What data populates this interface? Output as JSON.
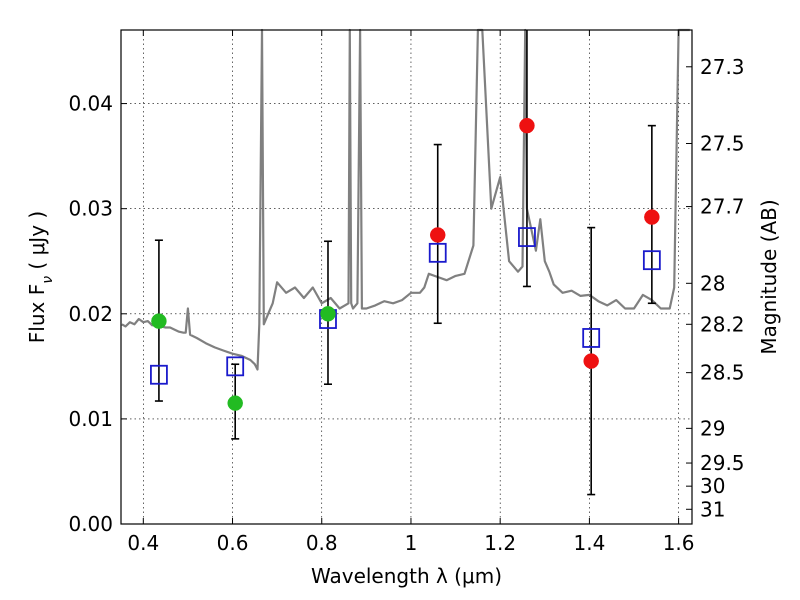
{
  "chart_data": {
    "type": "scatter",
    "xlabel": "Wavelength  λ (μm)",
    "ylabel": "Flux  F",
    "ylabel_sub": "ν",
    "ylabel_unit": " ( μJy )",
    "y2label": "Magnitude (AB)",
    "xlim": [
      0.35,
      1.63
    ],
    "ylim": [
      0.0,
      0.047
    ],
    "grid": true,
    "x_ticks": [
      {
        "value": 0.4,
        "label": "0.4"
      },
      {
        "value": 0.6,
        "label": "0.6"
      },
      {
        "value": 0.8,
        "label": "0.8"
      },
      {
        "value": 1.0,
        "label": "1"
      },
      {
        "value": 1.2,
        "label": "1.2"
      },
      {
        "value": 1.4,
        "label": "1.4"
      },
      {
        "value": 1.6,
        "label": "1.6"
      }
    ],
    "y_ticks": [
      {
        "value": 0.0,
        "label": "0.00"
      },
      {
        "value": 0.01,
        "label": "0.01"
      },
      {
        "value": 0.02,
        "label": "0.02"
      },
      {
        "value": 0.03,
        "label": "0.03"
      },
      {
        "value": 0.04,
        "label": "0.04"
      }
    ],
    "y2_ticks": [
      {
        "flux": 0.0435,
        "label": "27.3"
      },
      {
        "flux": 0.0362,
        "label": "27.5"
      },
      {
        "flux": 0.0302,
        "label": "27.7"
      },
      {
        "flux": 0.0229,
        "label": "28"
      },
      {
        "flux": 0.019,
        "label": "28.2"
      },
      {
        "flux": 0.0144,
        "label": "28.5"
      },
      {
        "flux": 0.0091,
        "label": "29"
      },
      {
        "flux": 0.0058,
        "label": "29.5"
      },
      {
        "flux": 0.0036,
        "label": "30"
      },
      {
        "flux": 0.0014,
        "label": "31"
      }
    ],
    "series": [
      {
        "kind": "spectrum",
        "color": "#808080",
        "x": [
          0.352,
          0.36,
          0.37,
          0.38,
          0.39,
          0.4,
          0.41,
          0.42,
          0.43,
          0.44,
          0.45,
          0.46,
          0.47,
          0.48,
          0.49,
          0.495,
          0.5,
          0.505,
          0.52,
          0.54,
          0.56,
          0.58,
          0.6,
          0.62,
          0.64,
          0.65,
          0.656,
          0.66,
          0.666,
          0.67,
          0.68,
          0.69,
          0.7,
          0.72,
          0.74,
          0.76,
          0.78,
          0.8,
          0.82,
          0.84,
          0.86,
          0.863,
          0.866,
          0.87,
          0.88,
          0.886,
          0.89,
          0.9,
          0.92,
          0.94,
          0.96,
          0.98,
          1.0,
          1.02,
          1.03,
          1.04,
          1.06,
          1.08,
          1.1,
          1.12,
          1.14,
          1.15,
          1.16,
          1.18,
          1.2,
          1.22,
          1.24,
          1.25,
          1.256,
          1.26,
          1.27,
          1.28,
          1.29,
          1.3,
          1.31,
          1.32,
          1.34,
          1.36,
          1.38,
          1.4,
          1.42,
          1.44,
          1.46,
          1.48,
          1.5,
          1.52,
          1.54,
          1.56,
          1.58,
          1.59,
          1.6,
          1.61,
          1.62,
          1.625
        ],
        "y": [
          0.019,
          0.0188,
          0.0192,
          0.019,
          0.0195,
          0.0192,
          0.0193,
          0.0189,
          0.019,
          0.0188,
          0.0187,
          0.0187,
          0.0185,
          0.0183,
          0.0182,
          0.0182,
          0.0205,
          0.018,
          0.0177,
          0.0172,
          0.0168,
          0.0165,
          0.0162,
          0.016,
          0.0156,
          0.0152,
          0.0147,
          0.019,
          0.047,
          0.019,
          0.02,
          0.021,
          0.023,
          0.022,
          0.0225,
          0.0215,
          0.0225,
          0.021,
          0.0215,
          0.0205,
          0.021,
          0.047,
          0.021,
          0.0205,
          0.021,
          0.047,
          0.0205,
          0.0205,
          0.0208,
          0.0212,
          0.021,
          0.0213,
          0.022,
          0.022,
          0.0225,
          0.0238,
          0.0235,
          0.0232,
          0.0236,
          0.0238,
          0.0265,
          0.047,
          0.047,
          0.03,
          0.033,
          0.025,
          0.024,
          0.0245,
          0.047,
          0.03,
          0.028,
          0.026,
          0.029,
          0.025,
          0.024,
          0.0228,
          0.022,
          0.0222,
          0.0217,
          0.0218,
          0.0212,
          0.0208,
          0.0213,
          0.0205,
          0.0205,
          0.0218,
          0.0213,
          0.0205,
          0.0205,
          0.0225,
          0.047,
          0.047,
          0.047,
          0.047
        ]
      },
      {
        "kind": "model-bandflux",
        "marker": "open-square",
        "color": "#1a1acc",
        "x": [
          0.435,
          0.606,
          0.814,
          1.06,
          1.26,
          1.404,
          1.54
        ],
        "y": [
          0.0142,
          0.015,
          0.0195,
          0.0258,
          0.0273,
          0.0177,
          0.0251
        ]
      },
      {
        "kind": "observed-optical",
        "marker": "filled-circle",
        "color": "#22bb22",
        "x": [
          0.435,
          0.606,
          0.814
        ],
        "y": [
          0.0193,
          0.0115,
          0.02
        ],
        "err_low": [
          0.0117,
          0.0081,
          0.0133
        ],
        "err_high": [
          0.027,
          0.0152,
          0.0269
        ]
      },
      {
        "kind": "observed-nir",
        "marker": "filled-circle",
        "color": "#ee1111",
        "x": [
          1.06,
          1.26,
          1.404,
          1.54
        ],
        "y": [
          0.0275,
          0.0379,
          0.0155,
          0.0292
        ],
        "err_low": [
          0.0191,
          0.0226,
          0.0028,
          0.021
        ],
        "err_high": [
          0.0361,
          0.047,
          0.0282,
          0.0379
        ]
      }
    ]
  }
}
